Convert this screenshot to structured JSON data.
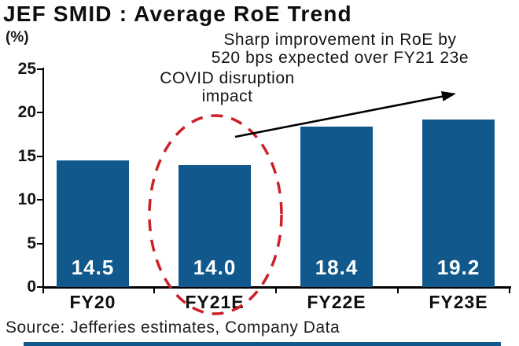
{
  "title": "JEF SMID : Average RoE Trend",
  "y_axis_unit_label": "(%)",
  "annotations": {
    "improvement_line1": "Sharp improvement in RoE by",
    "improvement_line2": "520 bps expected over FY21 23e",
    "covid_line1": "COVID disruption",
    "covid_line2": "impact"
  },
  "source_note": "Source: Jefferies estimates, Company Data",
  "colors": {
    "bar": "#11598C",
    "highlight_ellipse": "#CC2027",
    "arrow": "#000000",
    "footer_bar": "#11598C",
    "value_label_text": "#FFFFFF"
  },
  "chart_data": {
    "type": "bar",
    "categories": [
      "FY20",
      "FY21E",
      "FY22E",
      "FY23E"
    ],
    "values": [
      14.5,
      14.0,
      18.4,
      19.2
    ],
    "value_labels": [
      "14.5",
      "14.0",
      "18.4",
      "19.2"
    ],
    "title": "JEF SMID : Average RoE Trend",
    "xlabel": "",
    "ylabel": "(%)",
    "ylim": [
      0,
      25
    ],
    "yticks": [
      0,
      5,
      10,
      15,
      20,
      25
    ],
    "grid": false,
    "legend_position": "none",
    "bar_color": "#11598C",
    "annotations": [
      "COVID disruption impact (red dashed ellipse around FY21E bar)",
      "Sharp improvement in RoE by 520 bps expected over FY21 23e (black arrow rising left to right)"
    ]
  }
}
